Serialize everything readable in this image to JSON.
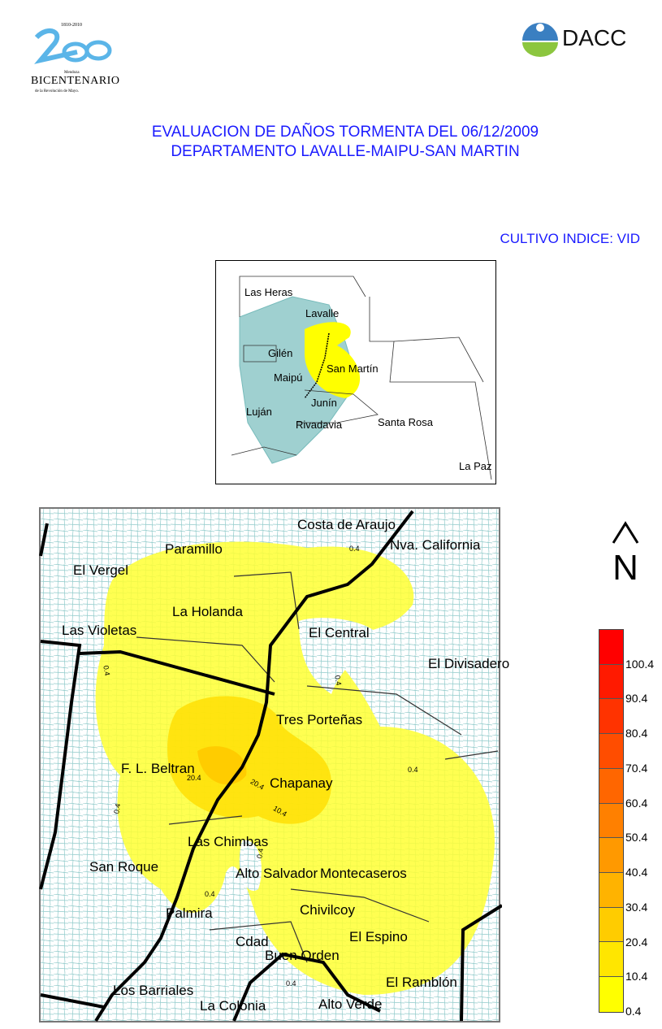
{
  "logos": {
    "left": {
      "years": "1810-2010",
      "small": "Mendoza",
      "main": "Bicentenario",
      "line": "de la Revolución de Mayo."
    },
    "right": {
      "text": "DACC"
    }
  },
  "header": {
    "title_line1": "EVALUACION DE DAÑOS TORMENTA DEL 06/12/2009",
    "title_line2": "DEPARTAMENTO LAVALLE-MAIPU-SAN MARTIN",
    "subtitle": "CULTIVO INDICE: VID"
  },
  "inset_map": {
    "labels": [
      "Las Heras",
      "Lavalle",
      "Gilén",
      "Maipú",
      "San Martín",
      "Junín",
      "Luján",
      "Rivadavia",
      "Santa Rosa",
      "La Paz"
    ]
  },
  "main_map": {
    "labels": [
      "Costa de Araujo",
      "Nva. California",
      "Paramillo",
      "El Vergel",
      "La Holanda",
      "Las Violetas",
      "El Central",
      "El Divisadero",
      "Tres Porteñas",
      "F. L. Beltran",
      "Chapanay",
      "Las Chimbas",
      "San Roque",
      "Alto Salvador",
      "Montecaseros",
      "Palmira",
      "Chivilcoy",
      "Cdad",
      "El Espino",
      "Buen Orden",
      "El Ramblón",
      "Los Barriales",
      "La Colonia",
      "Alto Verde"
    ],
    "contour_labels": [
      "0.4",
      "0.4",
      "0.4",
      "0.4",
      "0.4",
      "0.4",
      "20.4",
      "20.4",
      "10.4",
      "0.4",
      "0.4"
    ]
  },
  "legend": {
    "ticks": [
      "100.4",
      "90.4",
      "80.4",
      "70.4",
      "60.4",
      "50.4",
      "40.4",
      "30.4",
      "20.4",
      "10.4",
      "0.4"
    ],
    "colors": [
      "#ff0000",
      "#ff1a00",
      "#ff3300",
      "#ff4d00",
      "#ff6600",
      "#ff8000",
      "#ff9900",
      "#ffb300",
      "#ffcc00",
      "#ffe600",
      "#ffff00"
    ]
  },
  "north_arrow": {
    "letter": "N"
  }
}
